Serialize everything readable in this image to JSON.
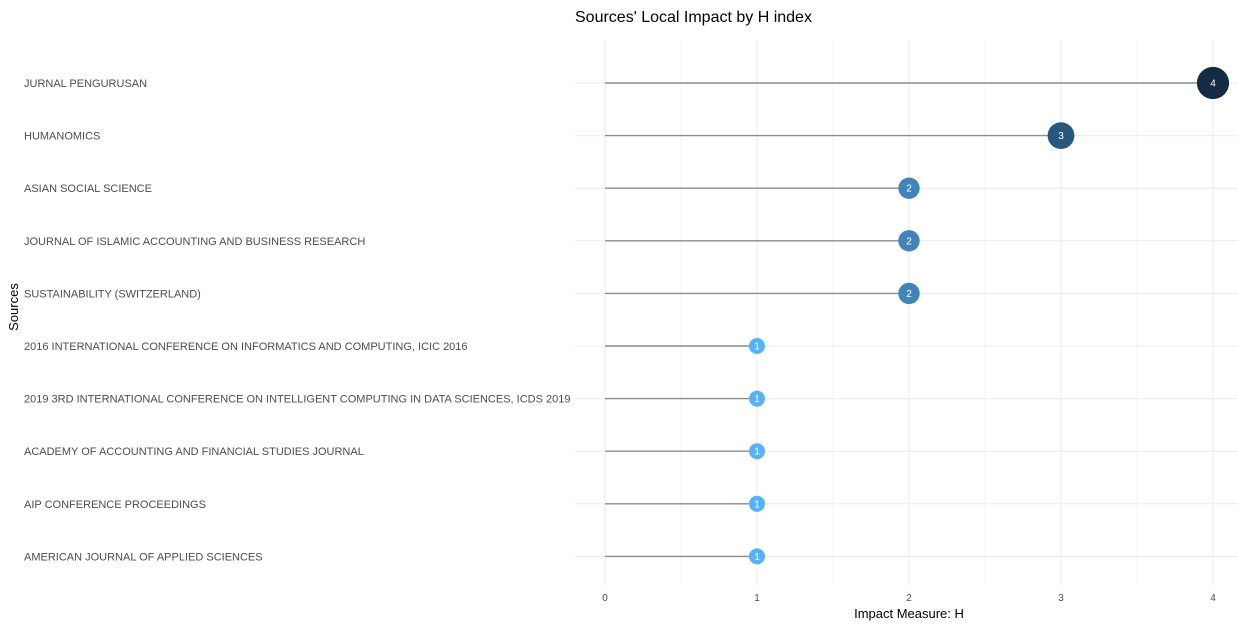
{
  "chart_data": {
    "type": "lollipop",
    "title": "Sources' Local Impact by H index",
    "xlabel": "Impact Measure: H",
    "ylabel": "Sources",
    "xlim": [
      0,
      4
    ],
    "xticks": [
      0,
      1,
      2,
      3,
      4
    ],
    "grid": true,
    "categories": [
      "JURNAL PENGURUSAN",
      "HUMANOMICS",
      "ASIAN SOCIAL SCIENCE",
      "JOURNAL OF ISLAMIC ACCOUNTING AND BUSINESS RESEARCH",
      "SUSTAINABILITY (SWITZERLAND)",
      "2016 INTERNATIONAL CONFERENCE ON INFORMATICS AND COMPUTING, ICIC 2016",
      "2019 3RD INTERNATIONAL CONFERENCE ON INTELLIGENT COMPUTING IN DATA SCIENCES, ICDS 2019",
      "ACADEMY OF ACCOUNTING AND FINANCIAL STUDIES JOURNAL",
      "AIP CONFERENCE PROCEEDINGS",
      "AMERICAN JOURNAL OF APPLIED SCIENCES"
    ],
    "values": [
      4,
      3,
      2,
      2,
      2,
      1,
      1,
      1,
      1,
      1
    ],
    "color_scale": {
      "low": "#56B1F7",
      "high": "#132B43"
    }
  }
}
